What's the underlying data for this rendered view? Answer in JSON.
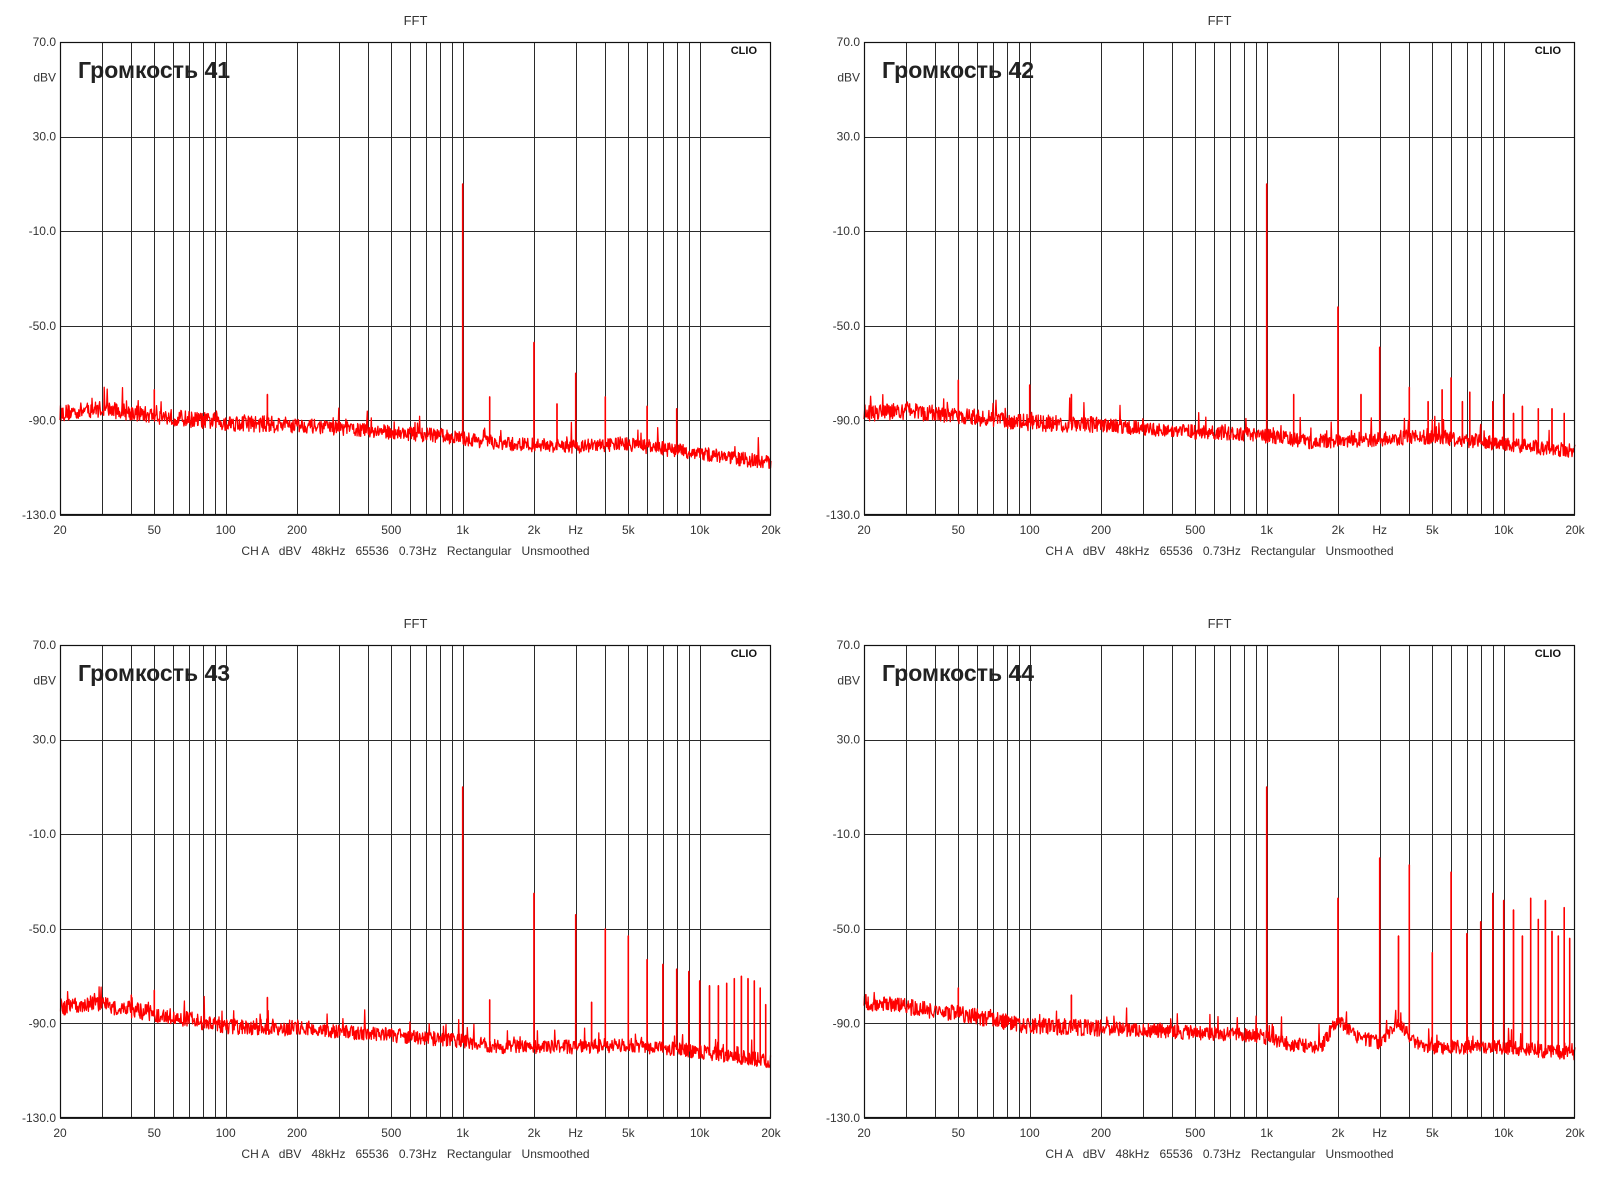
{
  "chart_data": [
    {
      "type": "line",
      "title": "FFT",
      "annotation": "Громкость 41",
      "brand": "CLIO",
      "footer": "CH A   dBV   48kHz   65536   0.73Hz   Rectangular   Unsmoothed",
      "xlabel": "Hz",
      "ylabel": "dBV",
      "x_scale": "log",
      "xlim": [
        20,
        20000
      ],
      "ylim": [
        -130,
        70
      ],
      "x_ticks": [
        "20",
        "50",
        "100",
        "200",
        "500",
        "1k",
        "2k",
        "5k",
        "10k",
        "20k"
      ],
      "y_ticks": [
        "70.0",
        "30.0",
        "-10.0",
        "-50.0",
        "-90.0",
        "-130.0"
      ],
      "grid": true,
      "color": "#ff0000",
      "noise_floor": [
        [
          20,
          -87
        ],
        [
          30,
          -85
        ],
        [
          50,
          -88
        ],
        [
          100,
          -91
        ],
        [
          200,
          -92
        ],
        [
          500,
          -95
        ],
        [
          900,
          -97
        ],
        [
          1500,
          -100
        ],
        [
          3000,
          -101
        ],
        [
          5000,
          -100
        ],
        [
          10000,
          -104
        ],
        [
          20000,
          -108
        ]
      ],
      "peaks": [
        [
          50,
          -77
        ],
        [
          150,
          -79
        ],
        [
          1000,
          10
        ],
        [
          1300,
          -80
        ],
        [
          2000,
          -57
        ],
        [
          2500,
          -83
        ],
        [
          3000,
          -70
        ],
        [
          4000,
          -80
        ],
        [
          6000,
          -84
        ],
        [
          8000,
          -85
        ]
      ]
    },
    {
      "type": "line",
      "title": "FFT",
      "annotation": "Громкость 42",
      "brand": "CLIO",
      "footer": "CH A   dBV   48kHz   65536   0.73Hz   Rectangular   Unsmoothed",
      "xlabel": "Hz",
      "ylabel": "dBV",
      "x_scale": "log",
      "xlim": [
        20,
        20000
      ],
      "ylim": [
        -130,
        70
      ],
      "x_ticks": [
        "20",
        "50",
        "100",
        "200",
        "500",
        "1k",
        "2k",
        "5k",
        "10k",
        "20k"
      ],
      "y_ticks": [
        "70.0",
        "30.0",
        "-10.0",
        "-50.0",
        "-90.0",
        "-130.0"
      ],
      "grid": true,
      "color": "#ff0000",
      "noise_floor": [
        [
          20,
          -87
        ],
        [
          30,
          -86
        ],
        [
          50,
          -88
        ],
        [
          100,
          -91
        ],
        [
          200,
          -92
        ],
        [
          500,
          -95
        ],
        [
          900,
          -96
        ],
        [
          1500,
          -99
        ],
        [
          3000,
          -98
        ],
        [
          5000,
          -97
        ],
        [
          10000,
          -100
        ],
        [
          20000,
          -103
        ]
      ],
      "peaks": [
        [
          50,
          -73
        ],
        [
          100,
          -75
        ],
        [
          150,
          -79
        ],
        [
          1000,
          10
        ],
        [
          1300,
          -79
        ],
        [
          2000,
          -42
        ],
        [
          2500,
          -79
        ],
        [
          3000,
          -59
        ],
        [
          4000,
          -76
        ],
        [
          4800,
          -82
        ],
        [
          5500,
          -77
        ],
        [
          6000,
          -72
        ],
        [
          6700,
          -82
        ],
        [
          7200,
          -78
        ],
        [
          8000,
          -92
        ],
        [
          9000,
          -82
        ],
        [
          10000,
          -79
        ],
        [
          11000,
          -87
        ],
        [
          12000,
          -84
        ],
        [
          14000,
          -85
        ],
        [
          16000,
          -85
        ],
        [
          18000,
          -87
        ]
      ]
    },
    {
      "type": "line",
      "title": "FFT",
      "annotation": "Громкость 43",
      "brand": "CLIO",
      "footer": "CH A   dBV   48kHz   65536   0.73Hz   Rectangular   Unsmoothed",
      "xlabel": "Hz",
      "ylabel": "dBV",
      "x_scale": "log",
      "xlim": [
        20,
        20000
      ],
      "ylim": [
        -130,
        70
      ],
      "x_ticks": [
        "20",
        "50",
        "100",
        "200",
        "500",
        "1k",
        "2k",
        "5k",
        "10k",
        "20k"
      ],
      "y_ticks": [
        "70.0",
        "30.0",
        "-10.0",
        "-50.0",
        "-90.0",
        "-130.0"
      ],
      "grid": true,
      "color": "#ff0000",
      "noise_floor": [
        [
          20,
          -83
        ],
        [
          30,
          -82
        ],
        [
          50,
          -86
        ],
        [
          100,
          -91
        ],
        [
          200,
          -92
        ],
        [
          500,
          -95
        ],
        [
          900,
          -97
        ],
        [
          1500,
          -100
        ],
        [
          3000,
          -100
        ],
        [
          5000,
          -99
        ],
        [
          10000,
          -102
        ],
        [
          20000,
          -106
        ]
      ],
      "peaks": [
        [
          40,
          -78
        ],
        [
          50,
          -76
        ],
        [
          150,
          -79
        ],
        [
          1000,
          10
        ],
        [
          1300,
          -80
        ],
        [
          2000,
          -35
        ],
        [
          3000,
          -44
        ],
        [
          3500,
          -81
        ],
        [
          4000,
          -50
        ],
        [
          5000,
          -53
        ],
        [
          6000,
          -63
        ],
        [
          7000,
          -65
        ],
        [
          8000,
          -67
        ],
        [
          9000,
          -68
        ],
        [
          10000,
          -72
        ],
        [
          11000,
          -74
        ],
        [
          12000,
          -74
        ],
        [
          13000,
          -73
        ],
        [
          14000,
          -71
        ],
        [
          15000,
          -70
        ],
        [
          16000,
          -71
        ],
        [
          17000,
          -72
        ],
        [
          18000,
          -75
        ],
        [
          19000,
          -82
        ]
      ]
    },
    {
      "type": "line",
      "title": "FFT",
      "annotation": "Громкость 44",
      "brand": "CLIO",
      "footer": "CH A   dBV   48kHz   65536   0.73Hz   Rectangular   Unsmoothed",
      "xlabel": "Hz",
      "ylabel": "dBV",
      "x_scale": "log",
      "xlim": [
        20,
        20000
      ],
      "ylim": [
        -130,
        70
      ],
      "x_ticks": [
        "20",
        "50",
        "100",
        "200",
        "500",
        "1k",
        "2k",
        "5k",
        "10k",
        "20k"
      ],
      "y_ticks": [
        "70.0",
        "30.0",
        "-10.0",
        "-50.0",
        "-90.0",
        "-130.0"
      ],
      "grid": true,
      "color": "#ff0000",
      "noise_floor": [
        [
          20,
          -81
        ],
        [
          30,
          -83
        ],
        [
          50,
          -86
        ],
        [
          100,
          -91
        ],
        [
          200,
          -92
        ],
        [
          500,
          -94
        ],
        [
          900,
          -95
        ],
        [
          1300,
          -99
        ],
        [
          1700,
          -100
        ],
        [
          2000,
          -88
        ],
        [
          2400,
          -96
        ],
        [
          3000,
          -98
        ],
        [
          3600,
          -89
        ],
        [
          4200,
          -98
        ],
        [
          5000,
          -100
        ],
        [
          10000,
          -100
        ],
        [
          20000,
          -103
        ]
      ],
      "peaks": [
        [
          50,
          -75
        ],
        [
          150,
          -78
        ],
        [
          1000,
          10
        ],
        [
          2000,
          -37
        ],
        [
          3000,
          -20
        ],
        [
          3600,
          -53
        ],
        [
          4000,
          -23
        ],
        [
          5000,
          -60
        ],
        [
          6000,
          -26
        ],
        [
          7000,
          -52
        ],
        [
          8000,
          -47
        ],
        [
          9000,
          -35
        ],
        [
          10000,
          -38
        ],
        [
          11000,
          -42
        ],
        [
          12000,
          -53
        ],
        [
          13000,
          -37
        ],
        [
          14000,
          -46
        ],
        [
          15000,
          -38
        ],
        [
          16000,
          -51
        ],
        [
          17000,
          -53
        ],
        [
          18000,
          -41
        ],
        [
          19000,
          -54
        ]
      ]
    }
  ]
}
